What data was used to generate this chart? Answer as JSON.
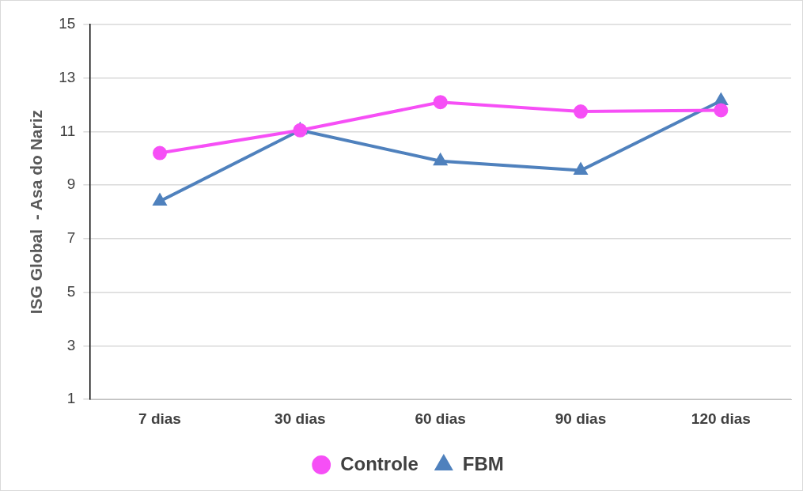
{
  "chart_data": {
    "type": "line",
    "ylabel": "ISG Global  - Asa do Nariz",
    "categories": [
      "7 dias",
      "30 dias",
      "60 dias",
      "90 dias",
      "120 dias"
    ],
    "series": [
      {
        "name": "FBM",
        "color": "#4f81bd",
        "marker": "triangle",
        "values": [
          8.4,
          11.05,
          9.9,
          9.55,
          12.15
        ]
      },
      {
        "name": "Controle",
        "color": "#f64ff6",
        "marker": "circle",
        "values": [
          10.2,
          11.05,
          12.1,
          11.75,
          11.8
        ]
      }
    ],
    "ylim": [
      1,
      15
    ],
    "yticks": [
      1,
      3,
      5,
      7,
      9,
      11,
      13,
      15
    ],
    "grid": "y",
    "legend": "bottom",
    "line_style": "solid"
  }
}
